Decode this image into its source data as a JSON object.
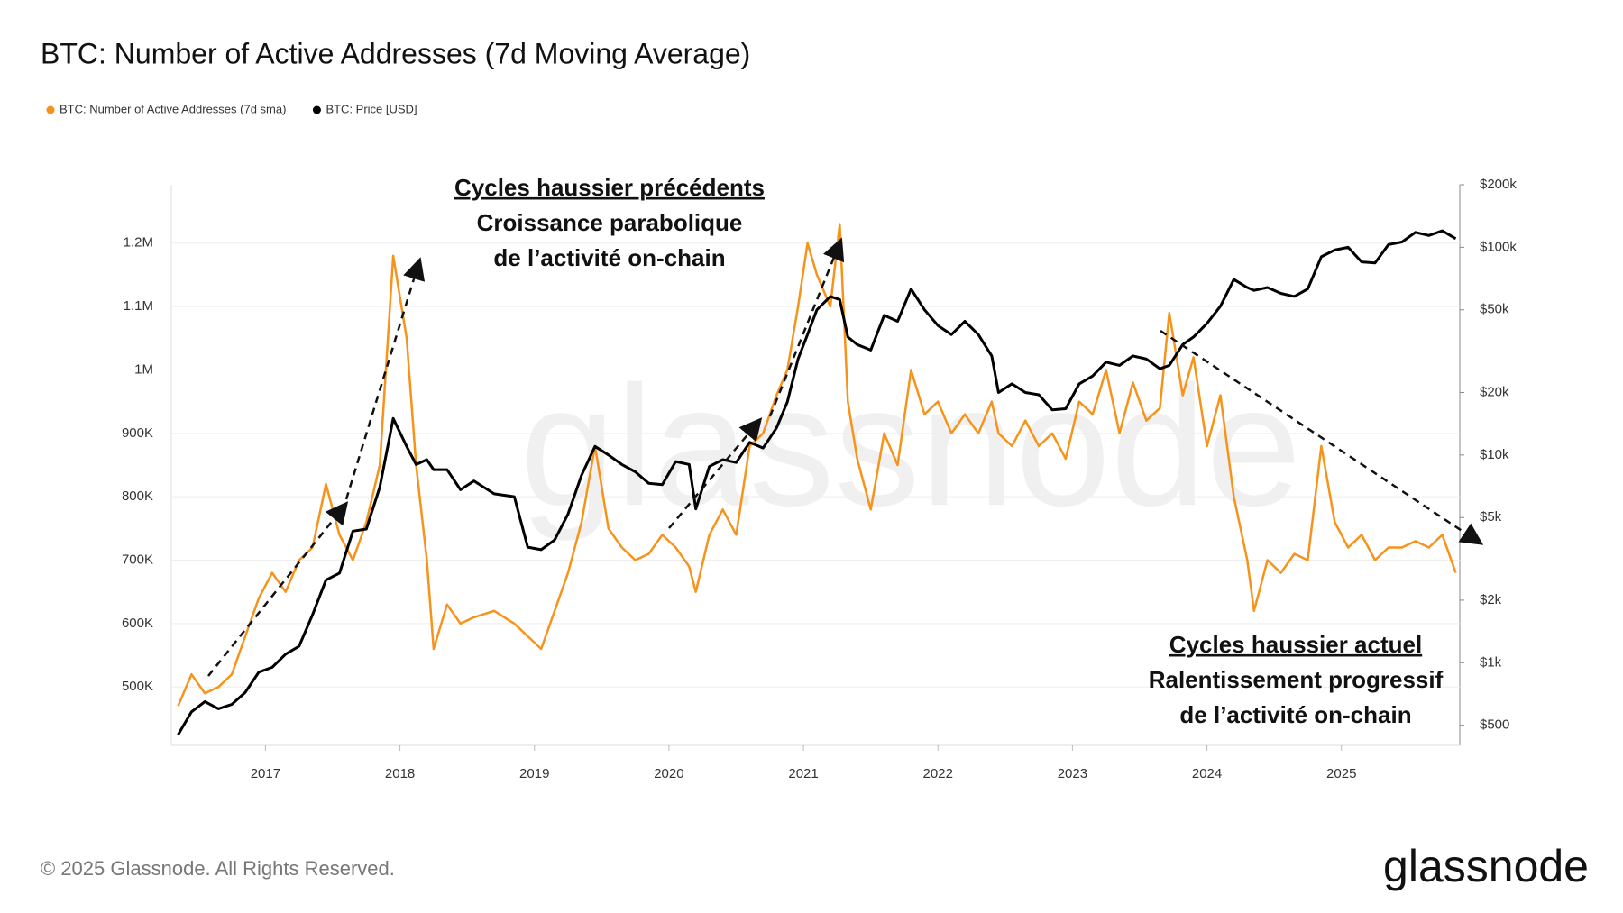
{
  "chart_data": {
    "type": "line",
    "title": "BTC: Number of Active Addresses (7d Moving Average)",
    "x": [
      2016.35,
      2016.45,
      2016.55,
      2016.65,
      2016.75,
      2016.85,
      2016.95,
      2017.05,
      2017.15,
      2017.25,
      2017.35,
      2017.45,
      2017.55,
      2017.65,
      2017.75,
      2017.85,
      2017.95,
      2018.05,
      2018.12,
      2018.2,
      2018.25,
      2018.35,
      2018.45,
      2018.55,
      2018.7,
      2018.85,
      2018.95,
      2019.05,
      2019.15,
      2019.25,
      2019.35,
      2019.45,
      2019.55,
      2019.65,
      2019.75,
      2019.85,
      2019.95,
      2020.05,
      2020.15,
      2020.2,
      2020.3,
      2020.4,
      2020.5,
      2020.6,
      2020.7,
      2020.8,
      2020.88,
      2020.96,
      2021.03,
      2021.1,
      2021.2,
      2021.27,
      2021.33,
      2021.4,
      2021.5,
      2021.6,
      2021.7,
      2021.8,
      2021.9,
      2022.0,
      2022.1,
      2022.2,
      2022.3,
      2022.4,
      2022.45,
      2022.55,
      2022.65,
      2022.75,
      2022.85,
      2022.95,
      2023.05,
      2023.15,
      2023.25,
      2023.35,
      2023.45,
      2023.55,
      2023.65,
      2023.72,
      2023.82,
      2023.9,
      2024.0,
      2024.1,
      2024.2,
      2024.3,
      2024.35,
      2024.45,
      2024.55,
      2024.65,
      2024.75,
      2024.85,
      2024.95,
      2025.05,
      2025.15,
      2025.25,
      2025.35,
      2025.45,
      2025.55,
      2025.65,
      2025.75,
      2025.85
    ],
    "series": [
      {
        "name": "BTC: Number of Active Addresses (7d sma)",
        "color": "#f7931a",
        "values": [
          470000,
          520000,
          490000,
          500000,
          520000,
          580000,
          640000,
          680000,
          650000,
          700000,
          720000,
          820000,
          740000,
          700000,
          760000,
          850000,
          1180000,
          1050000,
          850000,
          700000,
          560000,
          630000,
          600000,
          610000,
          620000,
          600000,
          580000,
          560000,
          620000,
          680000,
          760000,
          880000,
          750000,
          720000,
          700000,
          710000,
          740000,
          720000,
          690000,
          650000,
          740000,
          780000,
          740000,
          880000,
          900000,
          960000,
          1000000,
          1100000,
          1200000,
          1150000,
          1100000,
          1230000,
          950000,
          860000,
          780000,
          900000,
          850000,
          1000000,
          930000,
          950000,
          900000,
          930000,
          900000,
          950000,
          900000,
          880000,
          920000,
          880000,
          900000,
          860000,
          950000,
          930000,
          1000000,
          900000,
          980000,
          920000,
          940000,
          1090000,
          960000,
          1020000,
          880000,
          960000,
          800000,
          700000,
          620000,
          700000,
          680000,
          710000,
          700000,
          880000,
          760000,
          720000,
          740000,
          700000,
          720000,
          720000,
          730000,
          720000,
          740000,
          680000
        ]
      },
      {
        "name": "BTC: Price [USD]",
        "color": "#000000",
        "axis": "y2",
        "values": [
          450,
          580,
          650,
          600,
          630,
          720,
          900,
          950,
          1100,
          1200,
          1700,
          2500,
          2700,
          4300,
          4400,
          7000,
          15000,
          11000,
          9000,
          9500,
          8500,
          8500,
          6800,
          7500,
          6500,
          6300,
          3600,
          3500,
          3900,
          5200,
          8000,
          11000,
          10000,
          9000,
          8300,
          7300,
          7200,
          9300,
          9000,
          5500,
          8800,
          9500,
          9200,
          11500,
          10800,
          13500,
          18000,
          29000,
          38000,
          50000,
          58000,
          56000,
          37000,
          34000,
          32000,
          47000,
          44000,
          63000,
          50000,
          42000,
          38000,
          44000,
          38000,
          30000,
          20000,
          22000,
          20000,
          19500,
          16500,
          16700,
          22000,
          24000,
          28000,
          27000,
          30000,
          29000,
          26000,
          27000,
          34000,
          37000,
          43000,
          52000,
          70000,
          64000,
          62000,
          64000,
          60000,
          58000,
          63000,
          90000,
          97000,
          100000,
          85000,
          84000,
          103000,
          106000,
          118000,
          114000,
          120000,
          110000
        ]
      }
    ],
    "xlim": [
      2016.3,
      2025.88
    ],
    "xticks": [
      2017,
      2018,
      2019,
      2020,
      2021,
      2022,
      2023,
      2024,
      2025
    ],
    "ylim": [
      408000,
      1292000
    ],
    "yticks": [
      {
        "value": 500000,
        "label": "500K"
      },
      {
        "value": 600000,
        "label": "600K"
      },
      {
        "value": 700000,
        "label": "700K"
      },
      {
        "value": 800000,
        "label": "800K"
      },
      {
        "value": 900000,
        "label": "900K"
      },
      {
        "value": 1000000,
        "label": "1M"
      },
      {
        "value": 1100000,
        "label": "1.1M"
      },
      {
        "value": 1200000,
        "label": "1.2M"
      }
    ],
    "y2lim": [
      400,
      200000
    ],
    "y2log": true,
    "y2ticks": [
      {
        "value": 500,
        "label": "$500"
      },
      {
        "value": 1000,
        "label": "$1k"
      },
      {
        "value": 2000,
        "label": "$2k"
      },
      {
        "value": 5000,
        "label": "$5k"
      },
      {
        "value": 10000,
        "label": "$10k"
      },
      {
        "value": 20000,
        "label": "$20k"
      },
      {
        "value": 50000,
        "label": "$50k"
      },
      {
        "value": 100000,
        "label": "$100k"
      },
      {
        "value": 200000,
        "label": "$200k"
      }
    ],
    "grid": true,
    "legend": "top-left",
    "annotations": [
      [
        "Cycles haussier précédents",
        "Croissance parabolique",
        "de l’activité on-chain"
      ],
      [
        "Cycles haussier actuel",
        "Ralentissement progressif",
        "de l’activité on-chain"
      ]
    ]
  },
  "footer": "© 2025 Glassnode. All Rights Reserved.",
  "logo": "glassnode"
}
